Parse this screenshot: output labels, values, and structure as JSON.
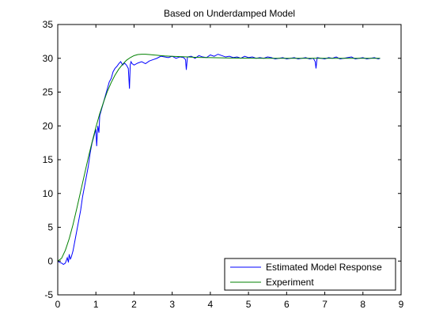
{
  "chart_data": {
    "type": "line",
    "title": "Based on Underdamped Model",
    "xlabel": "",
    "ylabel": "",
    "xlim": [
      0,
      9
    ],
    "ylim": [
      -5,
      35
    ],
    "xticks": [
      0,
      1,
      2,
      3,
      4,
      5,
      6,
      7,
      8,
      9
    ],
    "yticks": [
      -5,
      0,
      5,
      10,
      15,
      20,
      25,
      30,
      35
    ],
    "grid": false,
    "legend_position": "bottom-right",
    "series": [
      {
        "name": "Estimated Model Response",
        "color": "#0000ff",
        "x": [
          0.0,
          0.05,
          0.1,
          0.15,
          0.2,
          0.25,
          0.28,
          0.3,
          0.33,
          0.35,
          0.4,
          0.45,
          0.5,
          0.55,
          0.6,
          0.65,
          0.7,
          0.75,
          0.8,
          0.85,
          0.9,
          0.95,
          1.0,
          1.02,
          1.05,
          1.08,
          1.1,
          1.15,
          1.2,
          1.25,
          1.3,
          1.35,
          1.4,
          1.45,
          1.5,
          1.55,
          1.6,
          1.65,
          1.7,
          1.75,
          1.8,
          1.85,
          1.88,
          1.9,
          1.92,
          1.95,
          2.0,
          2.1,
          2.2,
          2.3,
          2.4,
          2.5,
          2.6,
          2.7,
          2.8,
          2.9,
          3.0,
          3.1,
          3.2,
          3.3,
          3.35,
          3.37,
          3.4,
          3.5,
          3.6,
          3.7,
          3.8,
          3.9,
          4.0,
          4.1,
          4.2,
          4.3,
          4.4,
          4.5,
          4.6,
          4.7,
          4.8,
          4.9,
          5.0,
          5.1,
          5.2,
          5.3,
          5.4,
          5.5,
          5.6,
          5.7,
          5.8,
          5.9,
          6.0,
          6.1,
          6.2,
          6.3,
          6.4,
          6.5,
          6.6,
          6.7,
          6.75,
          6.77,
          6.8,
          6.9,
          7.0,
          7.1,
          7.2,
          7.3,
          7.4,
          7.5,
          7.6,
          7.7,
          7.8,
          7.9,
          8.0,
          8.1,
          8.2,
          8.3,
          8.4,
          8.45
        ],
        "y": [
          0.0,
          -0.2,
          -0.3,
          -0.5,
          -0.3,
          0.5,
          -0.2,
          1.0,
          0.3,
          0.5,
          1.5,
          3.0,
          4.5,
          6.0,
          7.5,
          9.5,
          11.0,
          12.5,
          14.0,
          16.0,
          17.5,
          18.5,
          19.5,
          17.0,
          20.0,
          19.0,
          21.5,
          22.5,
          23.5,
          24.5,
          25.5,
          26.5,
          27.0,
          28.0,
          28.5,
          28.8,
          29.2,
          29.5,
          29.0,
          29.3,
          29.0,
          28.5,
          25.5,
          29.0,
          29.5,
          29.2,
          29.0,
          29.3,
          29.5,
          29.2,
          29.6,
          29.8,
          30.0,
          30.3,
          30.2,
          30.1,
          30.3,
          30.0,
          30.2,
          30.1,
          29.8,
          28.3,
          30.2,
          30.3,
          30.0,
          30.4,
          30.2,
          30.1,
          30.5,
          30.3,
          30.6,
          30.4,
          30.2,
          30.3,
          30.1,
          30.2,
          30.0,
          30.3,
          30.1,
          30.2,
          30.0,
          30.1,
          30.0,
          30.2,
          30.1,
          29.9,
          30.0,
          30.1,
          29.9,
          30.0,
          30.1,
          29.9,
          30.0,
          30.1,
          29.9,
          30.0,
          29.5,
          28.5,
          30.1,
          30.0,
          29.9,
          30.1,
          30.0,
          30.2,
          29.9,
          30.0,
          30.1,
          30.2,
          29.9,
          30.0,
          30.1,
          29.9,
          30.0,
          30.1,
          29.9,
          30.0
        ]
      },
      {
        "name": "Experiment",
        "color": "#008000",
        "x": [
          0.0,
          0.1,
          0.2,
          0.3,
          0.4,
          0.5,
          0.6,
          0.7,
          0.8,
          0.9,
          1.0,
          1.1,
          1.2,
          1.3,
          1.4,
          1.5,
          1.6,
          1.7,
          1.8,
          1.9,
          2.0,
          2.1,
          2.2,
          2.3,
          2.4,
          2.5,
          2.6,
          2.7,
          2.8,
          3.0,
          3.2,
          3.4,
          3.6,
          3.8,
          4.0,
          4.5,
          5.0,
          5.5,
          6.0,
          6.5,
          7.0,
          7.5,
          8.0,
          8.45
        ],
        "y": [
          0.0,
          0.4,
          1.6,
          3.3,
          5.4,
          7.8,
          10.3,
          12.8,
          15.3,
          17.6,
          19.8,
          21.8,
          23.5,
          25.1,
          26.4,
          27.5,
          28.4,
          29.1,
          29.7,
          30.1,
          30.4,
          30.55,
          30.6,
          30.6,
          30.55,
          30.5,
          30.45,
          30.4,
          30.35,
          30.3,
          30.25,
          30.2,
          30.15,
          30.12,
          30.1,
          30.05,
          30.02,
          30.0,
          30.0,
          30.0,
          30.0,
          30.0,
          30.0,
          30.0
        ]
      }
    ]
  }
}
